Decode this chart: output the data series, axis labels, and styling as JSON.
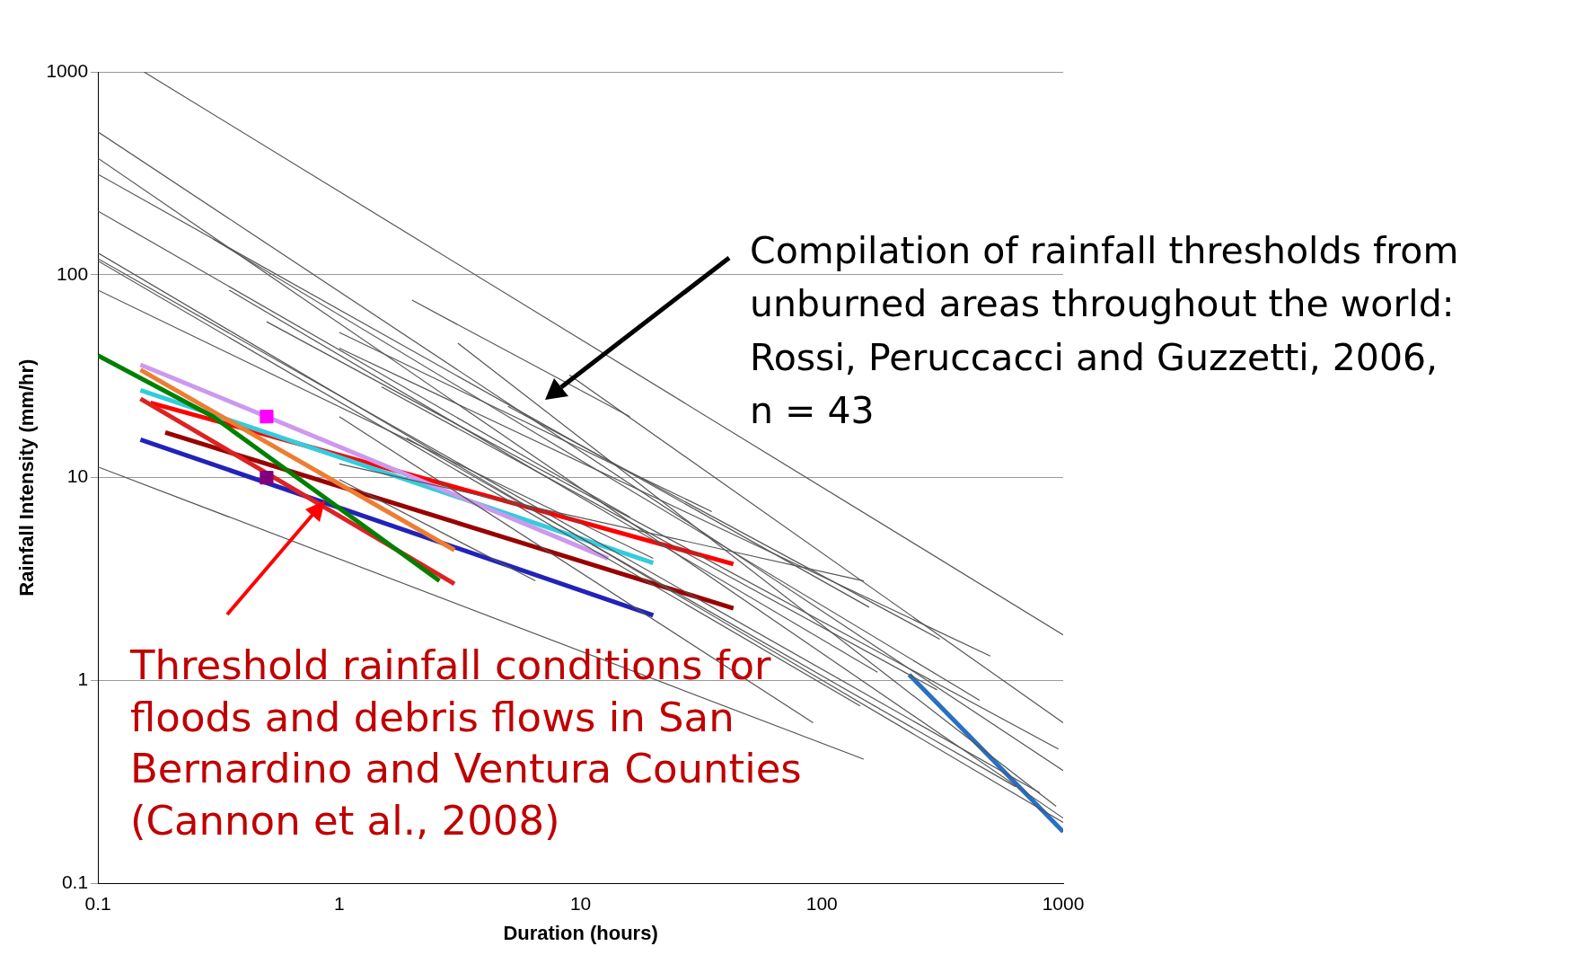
{
  "chart_data": {
    "type": "line",
    "xlabel": "Duration (hours)",
    "ylabel": "Rainfall Intensity (mm/hr)",
    "log": "xy",
    "grid": "y",
    "legend": false,
    "marker": "none",
    "xlim": [
      0.1,
      1000
    ],
    "ylim": [
      0.1,
      1000
    ],
    "xticks": [
      0.1,
      1,
      10,
      100,
      1000
    ],
    "yticks": [
      0.1,
      1,
      10,
      100,
      1000
    ],
    "annotations": [
      "Compilation of rainfall thresholds from unburned areas throughout the world: Rossi, Peruccacci and Guzzetti, 2006,\nn = 43",
      "Threshold rainfall conditions for floods and debris flows in San Bernardino and Ventura Counties (Cannon et al., 2008)"
    ],
    "series": [
      {
        "color": "#555555",
        "x": [
          0.155,
          1000
        ],
        "values": [
          1000,
          1.68
        ]
      },
      {
        "color": "#555555",
        "x": [
          0.1,
          1000
        ],
        "values": [
          506,
          0.36
        ]
      },
      {
        "color": "#555555",
        "x": [
          0.1,
          1000
        ],
        "values": [
          375,
          0.21
        ]
      },
      {
        "color": "#555555",
        "x": [
          0.1,
          157
        ],
        "values": [
          313,
          2.3
        ]
      },
      {
        "color": "#555555",
        "x": [
          0.1,
          16
        ],
        "values": [
          206,
          6.4
        ]
      },
      {
        "color": "#555555",
        "x": [
          0.1,
          1000
        ],
        "values": [
          128,
          0.2
        ]
      },
      {
        "color": "#555555",
        "x": [
          0.1,
          144
        ],
        "values": [
          117,
          0.75
        ]
      },
      {
        "color": "#555555",
        "x": [
          0.1,
          149
        ],
        "values": [
          11.3,
          0.41
        ]
      },
      {
        "color": "#555555",
        "x": [
          0.5,
          955
        ],
        "values": [
          58.7,
          0.46
        ]
      },
      {
        "color": "#555555",
        "x": [
          1,
          499
        ],
        "values": [
          43.5,
          1.32
        ]
      },
      {
        "color": "#555555",
        "x": [
          2,
          16
        ],
        "values": [
          75,
          20
        ]
      },
      {
        "color": "#555555",
        "x": [
          1,
          149
        ],
        "values": [
          11.7,
          3.1
        ]
      },
      {
        "color": "#555555",
        "x": [
          1,
          92
        ],
        "values": [
          20,
          0.62
        ]
      },
      {
        "color": "#555555",
        "x": [
          1.9,
          635
        ],
        "values": [
          15.7,
          0.3
        ]
      },
      {
        "color": "#555555",
        "x": [
          1,
          6.5
        ],
        "values": [
          9.8,
          3.1
        ]
      },
      {
        "color": "#555555",
        "x": [
          5,
          308
        ],
        "values": [
          22.5,
          1.6
        ]
      },
      {
        "color": "#555555",
        "x": [
          9,
          1000
        ],
        "values": [
          32,
          0.62
        ]
      },
      {
        "color": "#555555",
        "x": [
          3.1,
          935
        ],
        "values": [
          46,
          0.24
        ]
      },
      {
        "color": "#555555",
        "x": [
          1,
          35
        ],
        "values": [
          52,
          6.8
        ]
      },
      {
        "color": "#555555",
        "x": [
          0.1,
          20
        ],
        "values": [
          84,
          4
        ]
      },
      {
        "color": "#555555",
        "x": [
          0.35,
          170
        ],
        "values": [
          84,
          1.1
        ]
      },
      {
        "color": "#555555",
        "x": [
          0.1,
          800
        ],
        "values": [
          120,
          0.28
        ]
      },
      {
        "color": "#555555",
        "x": [
          0.3,
          450
        ],
        "values": [
          150,
          0.8
        ]
      },
      {
        "color": "#555555",
        "x": [
          1.5,
          300
        ],
        "values": [
          28,
          0.9
        ]
      },
      {
        "color": "#008000",
        "x": [
          0.1,
          0.3,
          2.6
        ],
        "values": [
          40,
          20,
          3.1
        ]
      },
      {
        "color": "#ed7d31",
        "x": [
          0.15,
          3
        ],
        "values": [
          34,
          4.4
        ]
      },
      {
        "color": "#cc99ee",
        "x": [
          0.15,
          0.5,
          13
        ],
        "values": [
          36,
          20,
          4
        ]
      },
      {
        "color": "#33ccdd",
        "x": [
          0.15,
          20
        ],
        "values": [
          27,
          3.8
        ]
      },
      {
        "color": "#dd2222",
        "x": [
          0.15,
          3
        ],
        "values": [
          24.5,
          3
        ]
      },
      {
        "color": "#2222bb",
        "x": [
          0.15,
          20
        ],
        "values": [
          15.4,
          2.1
        ]
      },
      {
        "color": "#2a70c0",
        "x": [
          230,
          1000
        ],
        "values": [
          1.07,
          0.18
        ]
      },
      {
        "color": "#ff0000",
        "x": [
          0.165,
          43
        ],
        "values": [
          23.4,
          3.75
        ]
      },
      {
        "color": "#990000",
        "x": [
          0.19,
          43
        ],
        "values": [
          16.7,
          2.27
        ]
      },
      {
        "type": "scatter",
        "marker": "square",
        "color": "#ff00ff",
        "x": [
          0.5
        ],
        "values": [
          20
        ]
      },
      {
        "type": "scatter",
        "marker": "square",
        "color": "#800080",
        "x": [
          0.5
        ],
        "values": [
          10
        ]
      }
    ]
  }
}
